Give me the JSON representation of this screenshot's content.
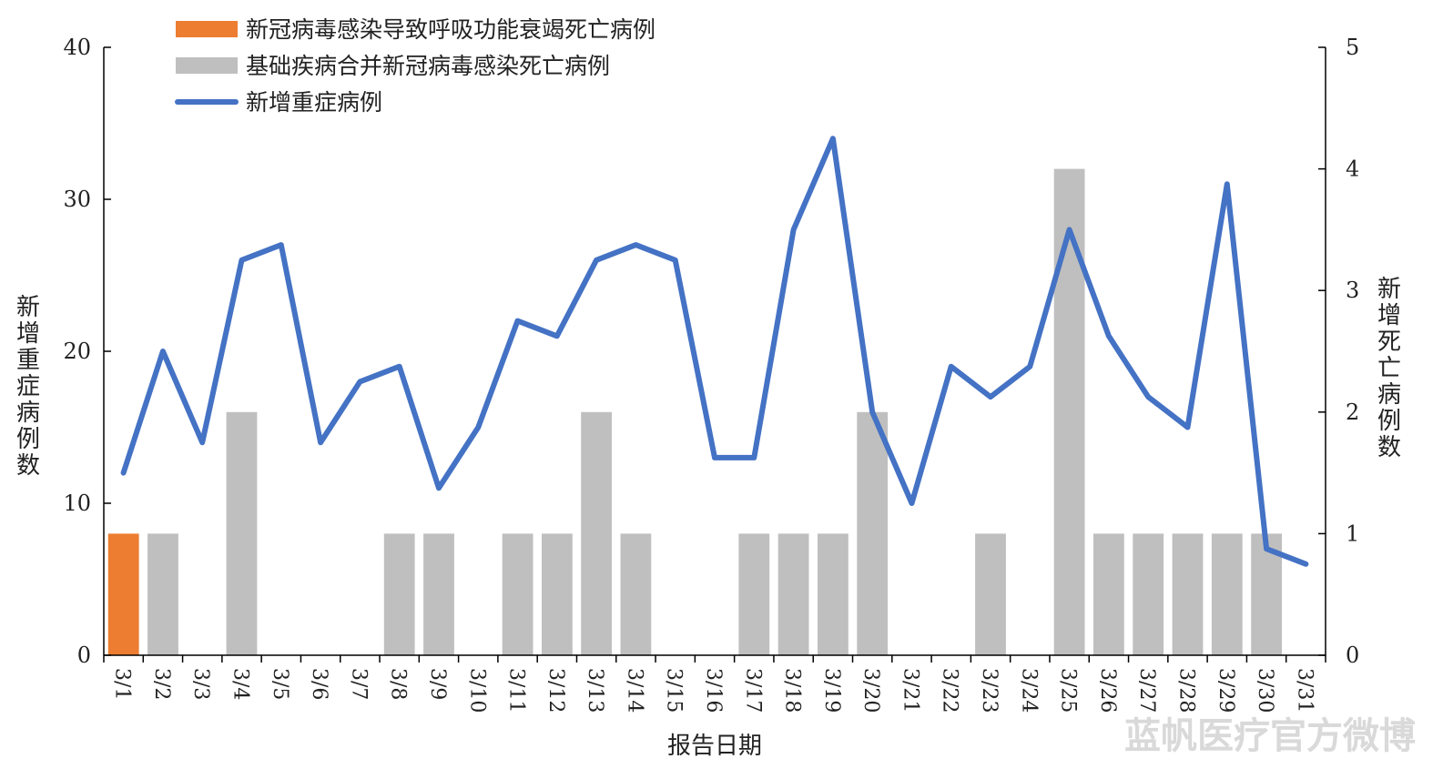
{
  "chart_data": {
    "type": "bar+line",
    "x_title": "报告日期",
    "y_left_title": "新增重症病例数",
    "y_right_title": "新增死亡病例数",
    "y_left_range": [
      0,
      40
    ],
    "y_left_ticks": [
      "0",
      "10",
      "20",
      "30",
      "40"
    ],
    "y_right_range": [
      0,
      5
    ],
    "y_right_ticks": [
      "0",
      "1",
      "2",
      "3",
      "4",
      "5"
    ],
    "legend_position": "top-left",
    "categories": [
      "3/1",
      "3/2",
      "3/3",
      "3/4",
      "3/5",
      "3/6",
      "3/7",
      "3/8",
      "3/9",
      "3/10",
      "3/11",
      "3/12",
      "3/13",
      "3/14",
      "3/15",
      "3/16",
      "3/17",
      "3/18",
      "3/19",
      "3/20",
      "3/21",
      "3/22",
      "3/23",
      "3/24",
      "3/25",
      "3/26",
      "3/27",
      "3/28",
      "3/29",
      "3/30",
      "3/31"
    ],
    "series": [
      {
        "name": "新冠病毒感染导致呼吸功能衰竭死亡病例",
        "kind": "bar",
        "axis": "right",
        "color": "#ed7d31",
        "values": [
          1,
          0,
          0,
          0,
          0,
          0,
          0,
          0,
          0,
          0,
          0,
          0,
          0,
          0,
          0,
          0,
          0,
          0,
          0,
          0,
          0,
          0,
          0,
          0,
          0,
          0,
          0,
          0,
          0,
          0,
          0
        ]
      },
      {
        "name": "基础疾病合并新冠病毒感染死亡病例",
        "kind": "bar",
        "axis": "right",
        "color": "#bfbfbf",
        "values": [
          0,
          1,
          0,
          2,
          0,
          0,
          0,
          1,
          1,
          0,
          1,
          1,
          2,
          1,
          0,
          0,
          1,
          1,
          1,
          2,
          0,
          0,
          1,
          0,
          4,
          1,
          1,
          1,
          1,
          1,
          0
        ]
      },
      {
        "name": "新增重症病例",
        "kind": "line",
        "axis": "left",
        "color": "#4472c4",
        "values": [
          12,
          20,
          14,
          26,
          27,
          14,
          18,
          19,
          11,
          15,
          22,
          21,
          26,
          27,
          26,
          13,
          13,
          28,
          34,
          16,
          10,
          19,
          17,
          19,
          28,
          21,
          17,
          15,
          31,
          7,
          6
        ]
      }
    ]
  },
  "watermark": "蓝帆医疗官方微博"
}
